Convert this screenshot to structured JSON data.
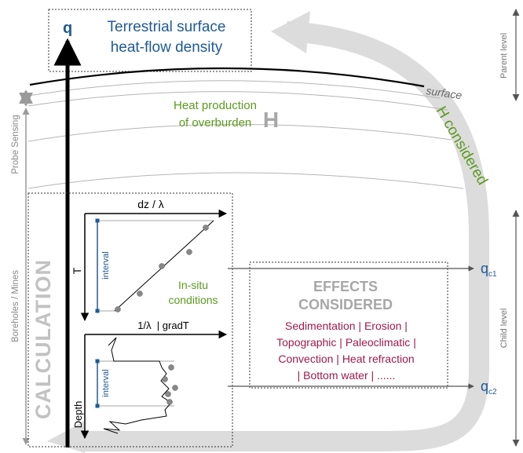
{
  "q_label": "q",
  "title": {
    "line1": "Terrestrial surface",
    "line2": "heat-flow density"
  },
  "surface_label": "surface",
  "parent_level": "Parent level",
  "child_level": "Child level",
  "probe_sensing": "Probe Sensing",
  "boreholes_mines": "Boreholes / Mines",
  "heat_production": {
    "line1": "Heat production",
    "line2": "of overburden",
    "symbol": "H"
  },
  "h_considered": "H considered",
  "calculation": "CALCULATION",
  "plot1": {
    "x_label": "dz / λ",
    "y_label": "T",
    "interval": "interval"
  },
  "insitu": {
    "line1": "In-situ",
    "line2": "conditions"
  },
  "plot2": {
    "x_label": "1/λ  | gradT",
    "y_label": "Depth",
    "interval": "interval"
  },
  "effects": {
    "title1": "EFFECTS",
    "title2": "CONSIDERED",
    "lines": [
      "Sedimentation | Erosion |",
      "Topographic | Paleoclimatic |",
      "Convection | Heat refraction",
      "| Bottom water | ......"
    ]
  },
  "qc1": {
    "base": "q",
    "sub": "c1"
  },
  "qc2": {
    "base": "q",
    "sub": "c2"
  },
  "colors": {
    "blue": "#1f5a96",
    "green": "#5a9a1e",
    "maroon": "#9e1a4c",
    "gray": "#a7a7a7",
    "light_gray": "#dcdcdc"
  }
}
